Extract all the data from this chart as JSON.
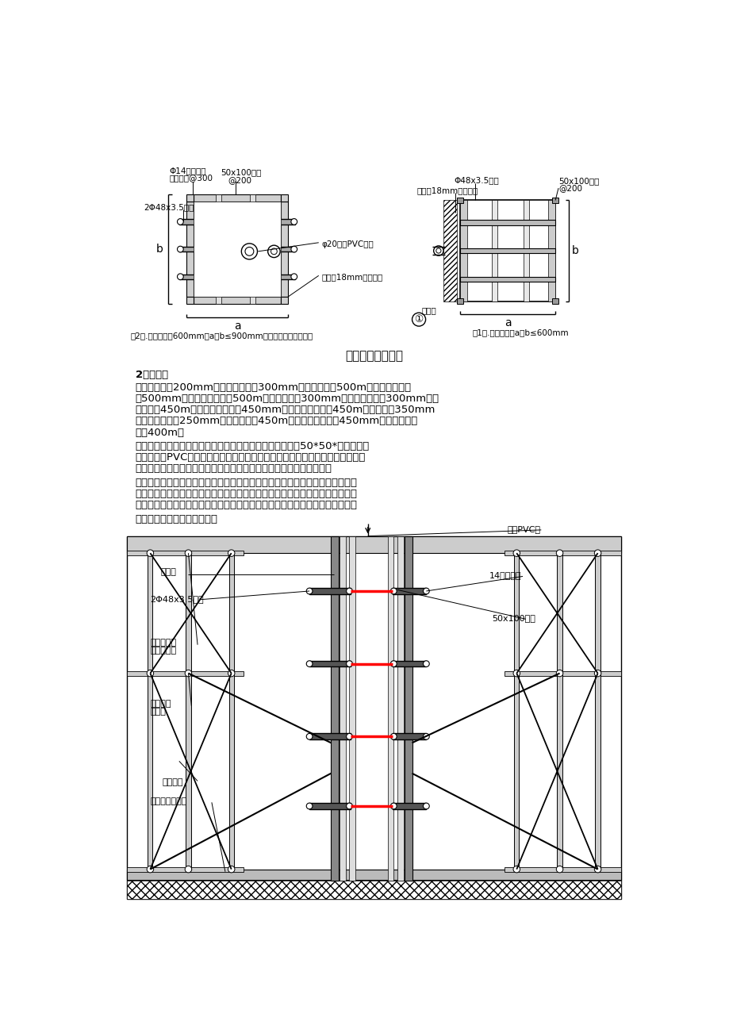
{
  "page_bg": "#ffffff",
  "title_diagram1": "柱模板支模示意图",
  "section_title": "2、墙模板",
  "para1_lines": [
    "　　墙厚度为200mm的，内楞间距为300mm，外楞间距为500m，螺杆间距纵向",
    "为500mm，螺杆间距横向为500m；内墙厚度为300mm的，内楞间距为300mm，外",
    "楞间距为450m，螺杆间距纵向为450mm，螺杆间距横向为450m；墙厚度为350mm",
    "的，内楞间距为250mm，外楞间距为450m，螺杆间距纵向为450mm，螺杆间距横",
    "向为400m。"
  ],
  "para2_lines": [
    "　　按照放线位置进行模板安装，边安装边插入穿墙螺栓、50*50*墙厚混凝土",
    "垫块和硬质PVC套管。有门窗洞口的墙体，宜先安好一侧模板，待弹好门窗洞口",
    "位置线后再安另一侧模板，且在安另一侧模板之前，应清扫墙内杂物。"
  ],
  "para3_lines": [
    "　　根据模板规范要求在内墙两侧加斜撑，且边安装边校正其平整度及垂直度。",
    "模板安装完毕应检查一遍螺栓、斜撑是否牢固，模板拼缝以及底边是否严密，特",
    "别是门窗洞边的模板应加强支撑，防止洞口跑模，每片墙对拉对顶撑至少两道。"
  ],
  "para4": "　　墙模板支设方法详见下图"
}
